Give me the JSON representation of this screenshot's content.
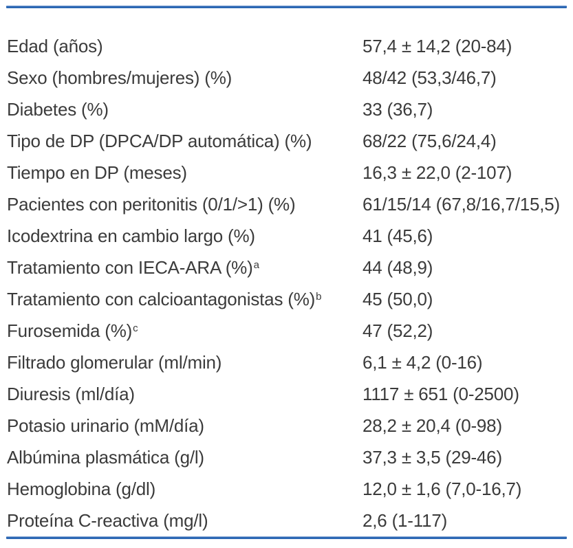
{
  "table": {
    "accent_color": "#2c68b4",
    "text_color": "#3b3b3b",
    "rows": [
      {
        "label": "Edad (años)",
        "sup": "",
        "value": "57,4 ± 14,2 (20-84)"
      },
      {
        "label": "Sexo (hombres/mujeres) (%)",
        "sup": "",
        "value": "48/42 (53,3/46,7)"
      },
      {
        "label": "Diabetes (%)",
        "sup": "",
        "value": "33 (36,7)"
      },
      {
        "label": "Tipo de DP (DPCA/DP automática) (%)",
        "sup": "",
        "value": "68/22 (75,6/24,4)"
      },
      {
        "label": "Tiempo en DP (meses)",
        "sup": "",
        "value": "16,3 ± 22,0 (2-107)"
      },
      {
        "label": "Pacientes con peritonitis (0/1/>1) (%)",
        "sup": "",
        "value": "61/15/14 (67,8/16,7/15,5)"
      },
      {
        "label": "Icodextrina en cambio largo (%)",
        "sup": "",
        "value": "41 (45,6)"
      },
      {
        "label": "Tratamiento con IECA-ARA (%)",
        "sup": "a",
        "value": "44 (48,9)"
      },
      {
        "label": "Tratamiento con calcioantagonistas (%)",
        "sup": "b",
        "value": "45 (50,0)"
      },
      {
        "label": "Furosemida (%)",
        "sup": "c",
        "value": "47 (52,2)"
      },
      {
        "label": "Filtrado glomerular (ml/min)",
        "sup": "",
        "value": "6,1 ± 4,2 (0-16)"
      },
      {
        "label": "Diuresis (ml/día)",
        "sup": "",
        "value": "1117 ± 651 (0-2500)"
      },
      {
        "label": "Potasio urinario (mM/día)",
        "sup": "",
        "value": "28,2 ± 20,4 (0-98)"
      },
      {
        "label": "Albúmina plasmática (g/l)",
        "sup": "",
        "value": "37,3 ± 3,5 (29-46)"
      },
      {
        "label": "Hemoglobina (g/dl)",
        "sup": "",
        "value": "12,0 ± 1,6 (7,0-16,7)"
      },
      {
        "label": "Proteína C-reactiva (mg/l)",
        "sup": "",
        "value": "2,6 (1-117)"
      }
    ]
  }
}
